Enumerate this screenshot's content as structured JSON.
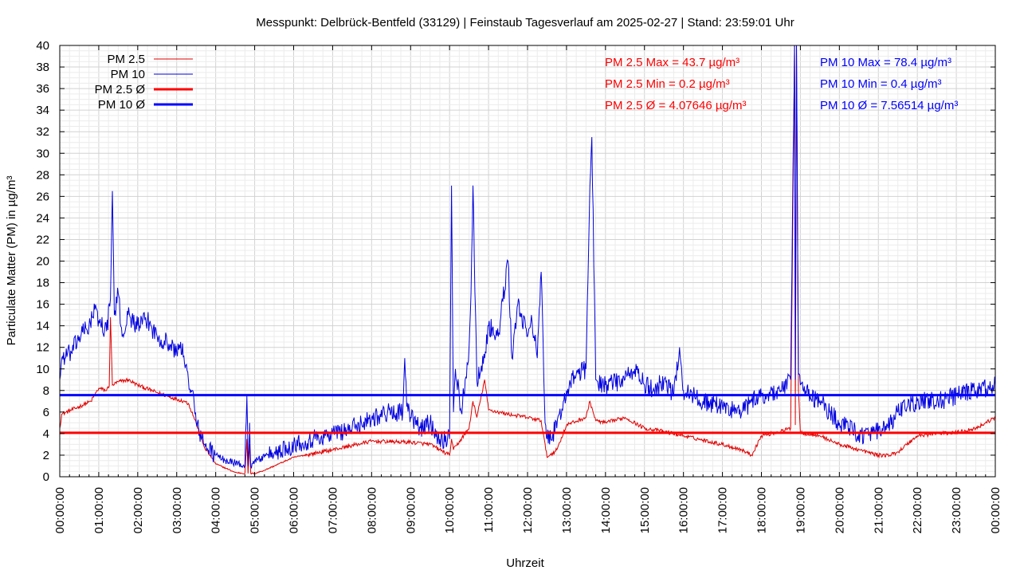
{
  "chart_data": {
    "type": "line",
    "title": "Messpunkt: Delbrück-Bentfeld (33129) | Feinstaub Tagesverlauf am 2025-02-27 | Stand: 23:59:01 Uhr",
    "xlabel": "Uhrzeit",
    "ylabel": "Particulate Matter (PM) in µg/m³",
    "ylim": [
      0,
      40
    ],
    "xlim_hours": [
      0,
      24
    ],
    "y_ticks": [
      "0",
      "2",
      "4",
      "6",
      "8",
      "10",
      "12",
      "14",
      "16",
      "18",
      "20",
      "22",
      "24",
      "26",
      "28",
      "30",
      "32",
      "34",
      "36",
      "38",
      "40"
    ],
    "x_ticks": [
      "00:00:00",
      "01:00:00",
      "02:00:00",
      "03:00:00",
      "04:00:00",
      "05:00:00",
      "06:00:00",
      "07:00:00",
      "08:00:00",
      "09:00:00",
      "10:00:00",
      "11:00:00",
      "12:00:00",
      "13:00:00",
      "14:00:00",
      "15:00:00",
      "16:00:00",
      "17:00:00",
      "18:00:00",
      "19:00:00",
      "20:00:00",
      "21:00:00",
      "22:00:00",
      "23:00:00",
      "00:00:00"
    ],
    "grid": true,
    "legend_position": "top-left",
    "legend": [
      "PM 2.5",
      "PM 10",
      "PM 2.5 Ø",
      "PM 10 Ø"
    ],
    "annotations": {
      "pm25": [
        "PM 2.5 Max = 43.7 µg/m³",
        "PM 2.5 Min = 0.2 µg/m³",
        "PM 2.5 Ø = 4.07646 µg/m³"
      ],
      "pm10": [
        "PM 10 Max = 78.4 µg/m³",
        "PM 10 Min = 0.4 µg/m³",
        "PM 10 Ø = 7.56514 µg/m³"
      ]
    },
    "series": [
      {
        "name": "PM 2.5",
        "color": "#e00000",
        "x": [
          0,
          0.05,
          0.5,
          0.8,
          1,
          1.2,
          1.27,
          1.3,
          1.35,
          1.5,
          1.75,
          2,
          2.5,
          3,
          3.2,
          3.3,
          3.5,
          3.7,
          4,
          4.5,
          4.75,
          4.8,
          4.83,
          4.87,
          4.9,
          5,
          5.25,
          5.5,
          6,
          7,
          8,
          9,
          9.5,
          9.75,
          10,
          10.05,
          10.1,
          10.5,
          10.6,
          10.7,
          10.9,
          11,
          11.5,
          12,
          12.35,
          12.5,
          12.75,
          13,
          13.5,
          13.6,
          13.75,
          14,
          14.5,
          15,
          15.5,
          16,
          16.5,
          17,
          17.5,
          17.75,
          18,
          18.5,
          18.75,
          18.85,
          18.87,
          18.9,
          18.95,
          19,
          19.5,
          20,
          20.5,
          21,
          21.3,
          21.5,
          22,
          22.5,
          23,
          23.5,
          24
        ],
        "y": [
          4.5,
          5.8,
          6.5,
          7,
          8.2,
          8,
          8.5,
          14.8,
          8.5,
          8.8,
          9,
          8.5,
          7.8,
          7.2,
          7,
          6.8,
          5,
          2.8,
          1.2,
          0.4,
          0.3,
          3.5,
          0.3,
          3,
          0.3,
          0.3,
          0.6,
          1,
          1.8,
          2.5,
          3.3,
          3.2,
          3,
          2.5,
          2,
          3.5,
          2.5,
          4.5,
          7,
          5.5,
          9,
          6.2,
          5.8,
          5.5,
          5.2,
          1.8,
          2.5,
          4.8,
          5.5,
          7,
          5.2,
          5,
          5.5,
          4.5,
          4.2,
          3.8,
          3.4,
          3,
          2.5,
          2,
          3.8,
          4.2,
          4.5,
          40,
          4.8,
          40,
          8,
          4.1,
          3.8,
          3,
          2.5,
          2,
          2,
          2.3,
          3.8,
          4,
          4.1,
          4.5,
          5.5
        ]
      },
      {
        "name": "PM 10",
        "color": "#0000e0",
        "x": [
          0,
          0.05,
          0.3,
          0.5,
          0.75,
          0.9,
          1,
          1.2,
          1.3,
          1.35,
          1.4,
          1.5,
          1.6,
          1.75,
          2,
          2.25,
          2.5,
          2.75,
          3,
          3.1,
          3.2,
          3.3,
          3.4,
          3.5,
          3.7,
          4,
          4.25,
          4.5,
          4.75,
          4.8,
          4.83,
          4.87,
          4.9,
          5,
          5.25,
          5.5,
          6,
          6.5,
          7,
          7.5,
          8,
          8.5,
          8.8,
          8.85,
          8.9,
          9,
          9.25,
          9.5,
          9.75,
          10,
          10.05,
          10.1,
          10.15,
          10.3,
          10.5,
          10.55,
          10.6,
          10.7,
          10.9,
          11,
          11.25,
          11.5,
          11.6,
          11.75,
          12,
          12.1,
          12.25,
          12.35,
          12.45,
          12.5,
          12.75,
          13,
          13.25,
          13.5,
          13.6,
          13.65,
          13.75,
          14,
          14.5,
          14.75,
          15,
          15.25,
          15.5,
          15.75,
          15.9,
          16,
          16.5,
          17,
          17.5,
          17.75,
          18,
          18.5,
          18.75,
          18.85,
          18.87,
          18.9,
          18.95,
          19,
          19.25,
          19.5,
          19.75,
          20,
          20.25,
          20.5,
          20.75,
          21,
          21.25,
          21.5,
          21.75,
          22,
          22.5,
          23,
          23.5,
          24
        ],
        "y": [
          9,
          11,
          11.5,
          13,
          14,
          15.5,
          14.5,
          13.5,
          16.5,
          26.5,
          15,
          17,
          13,
          15,
          14,
          14.5,
          13,
          12.5,
          11.5,
          12.5,
          10.5,
          9,
          8,
          5,
          3,
          2,
          1.5,
          1.3,
          1,
          7.5,
          1,
          5,
          1,
          1.5,
          1.8,
          2.2,
          3,
          3.5,
          4,
          4.5,
          5.5,
          6,
          6,
          11,
          6.5,
          5.5,
          4.5,
          5,
          3.5,
          3.5,
          27,
          6,
          10,
          6,
          12,
          17,
          27,
          9,
          11,
          14,
          13,
          20,
          11,
          16,
          13,
          15,
          11,
          19,
          5,
          3.5,
          4.5,
          8,
          9.5,
          10,
          27,
          31.5,
          9,
          8.5,
          9,
          10,
          8.5,
          8,
          9,
          7.5,
          12,
          8,
          7,
          6.5,
          6,
          7,
          7.5,
          8,
          9,
          40,
          9,
          40,
          9.5,
          8.5,
          7.5,
          7,
          6,
          5,
          4.5,
          4,
          3.8,
          4.2,
          4.5,
          6,
          6.5,
          7,
          7,
          7.5,
          8,
          8.5
        ]
      },
      {
        "name": "PM 2.5 Ø",
        "color": "#ff0000",
        "mean": 4.07646
      },
      {
        "name": "PM 10 Ø",
        "color": "#0000ff",
        "mean": 7.56514
      }
    ]
  }
}
